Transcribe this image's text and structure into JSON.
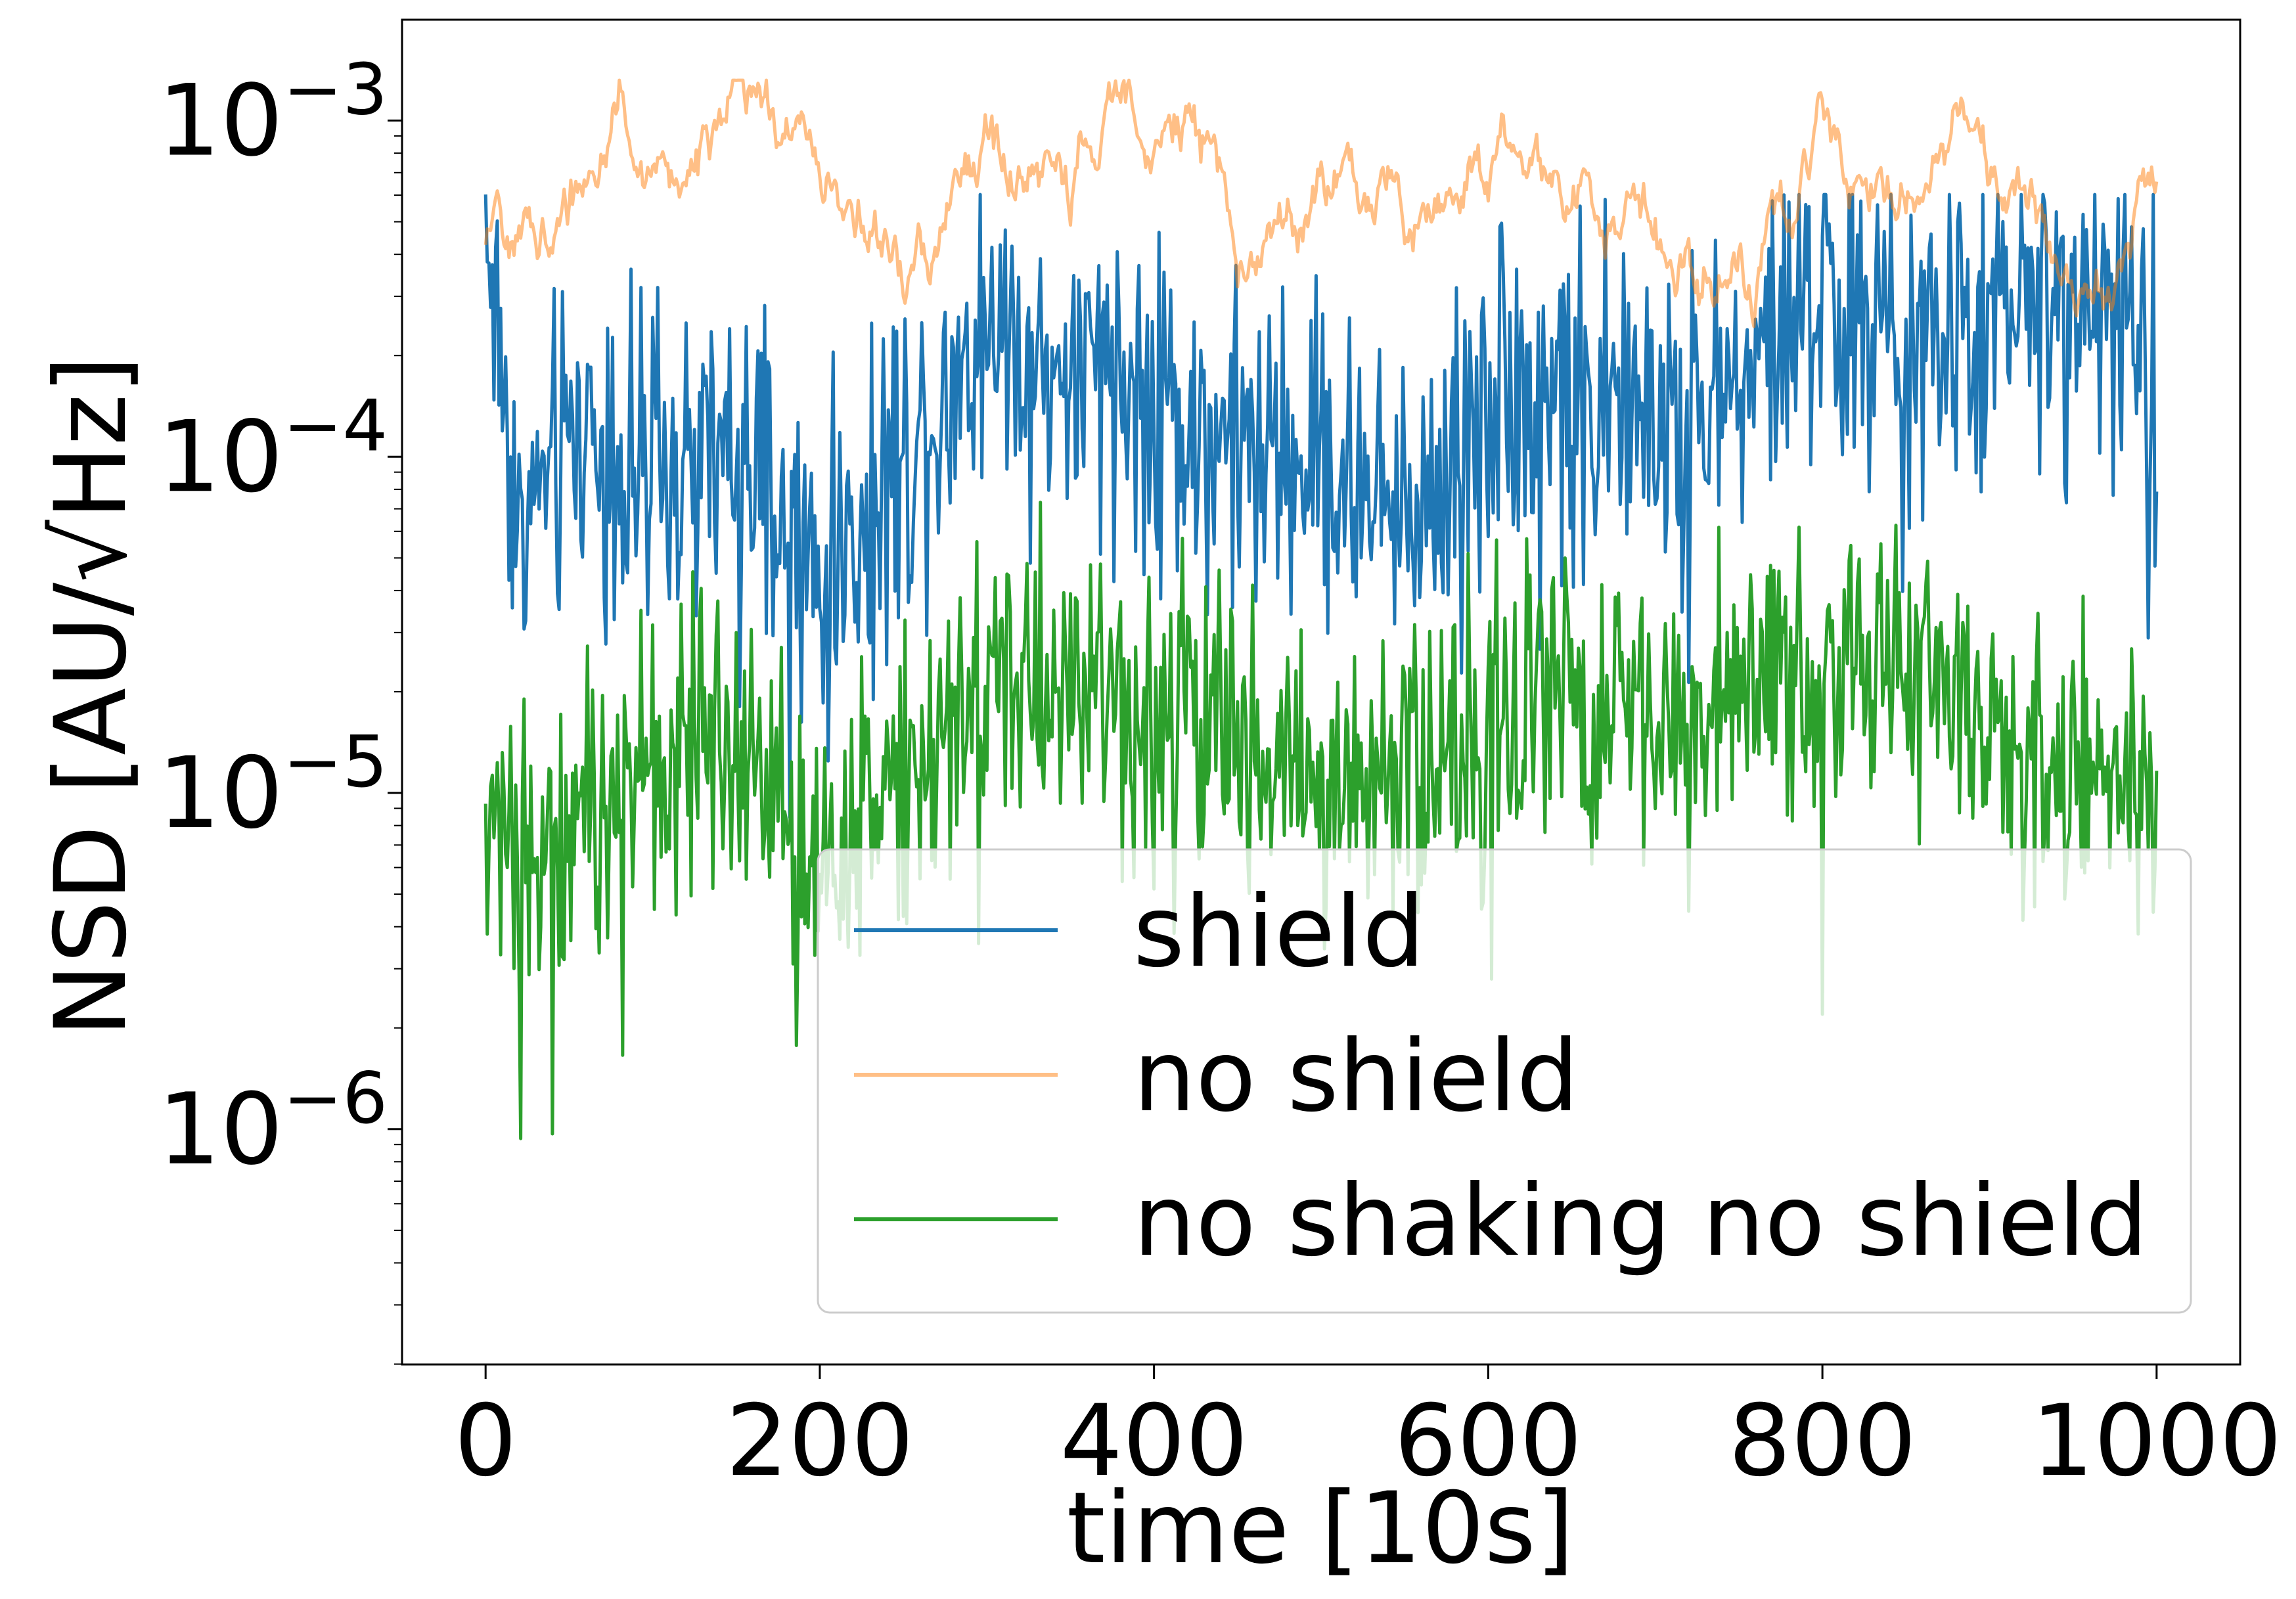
{
  "chart_data": {
    "type": "line",
    "xlabel": "time [10s]",
    "ylabel": "NSD [AU/√Hz]",
    "xlim": [
      -50,
      1050
    ],
    "ylim_log10": [
      -6.7,
      -2.7
    ],
    "y_scale": "log",
    "x_ticks": [
      0,
      200,
      400,
      600,
      800,
      1000
    ],
    "y_ticks": [
      {
        "exp": -6,
        "base": "10",
        "sup": "−6"
      },
      {
        "exp": -5,
        "base": "10",
        "sup": "−5"
      },
      {
        "exp": -4,
        "base": "10",
        "sup": "−4"
      },
      {
        "exp": -3,
        "base": "10",
        "sup": "−3"
      }
    ],
    "legend_position": "lower-right",
    "series": [
      {
        "name": "shield",
        "color": "#1f77b4",
        "opacity": 1.0,
        "anchors": [
          [
            0,
            -3.3
          ],
          [
            20,
            -4.2
          ],
          [
            60,
            -3.9
          ],
          [
            100,
            -4.1
          ],
          [
            150,
            -4.0
          ],
          [
            200,
            -4.4
          ],
          [
            250,
            -4.0
          ],
          [
            300,
            -3.6
          ],
          [
            350,
            -3.8
          ],
          [
            400,
            -3.8
          ],
          [
            450,
            -4.0
          ],
          [
            500,
            -4.0
          ],
          [
            550,
            -4.2
          ],
          [
            600,
            -3.8
          ],
          [
            650,
            -3.8
          ],
          [
            700,
            -3.9
          ],
          [
            750,
            -3.8
          ],
          [
            800,
            -3.5
          ],
          [
            850,
            -3.7
          ],
          [
            900,
            -3.6
          ],
          [
            950,
            -3.5
          ],
          [
            1000,
            -3.7
          ]
        ],
        "noise": 0.42,
        "range": [
          -5.25,
          -3.22
        ]
      },
      {
        "name": "no shield",
        "color": "#ff7f0e",
        "opacity": 0.5,
        "anchors": [
          [
            0,
            -3.4
          ],
          [
            50,
            -3.3
          ],
          [
            80,
            -2.9
          ],
          [
            100,
            -3.2
          ],
          [
            150,
            -3.0
          ],
          [
            200,
            -3.1
          ],
          [
            250,
            -3.5
          ],
          [
            300,
            -3.1
          ],
          [
            350,
            -3.2
          ],
          [
            385,
            -2.9
          ],
          [
            420,
            -3.0
          ],
          [
            450,
            -3.4
          ],
          [
            500,
            -3.2
          ],
          [
            550,
            -3.3
          ],
          [
            600,
            -3.1
          ],
          [
            650,
            -3.2
          ],
          [
            700,
            -3.3
          ],
          [
            760,
            -3.5
          ],
          [
            800,
            -3.0
          ],
          [
            850,
            -3.2
          ],
          [
            880,
            -3.0
          ],
          [
            950,
            -3.5
          ],
          [
            1000,
            -3.15
          ]
        ],
        "noise": 0.12,
        "range": [
          -3.9,
          -2.88
        ]
      },
      {
        "name": "no shaking no shield",
        "color": "#2ca02c",
        "opacity": 1.0,
        "anchors": [
          [
            0,
            -5.15
          ],
          [
            60,
            -5.1
          ],
          [
            100,
            -4.9
          ],
          [
            150,
            -4.8
          ],
          [
            200,
            -5.2
          ],
          [
            300,
            -4.6
          ],
          [
            400,
            -4.7
          ],
          [
            450,
            -4.8
          ],
          [
            500,
            -5.0
          ],
          [
            550,
            -4.9
          ],
          [
            600,
            -4.8
          ],
          [
            650,
            -4.7
          ],
          [
            700,
            -4.8
          ],
          [
            800,
            -4.6
          ],
          [
            850,
            -4.6
          ],
          [
            900,
            -4.8
          ],
          [
            950,
            -5.0
          ],
          [
            1000,
            -4.95
          ]
        ],
        "noise": 0.36,
        "range": [
          -6.18,
          -3.6
        ]
      }
    ]
  }
}
